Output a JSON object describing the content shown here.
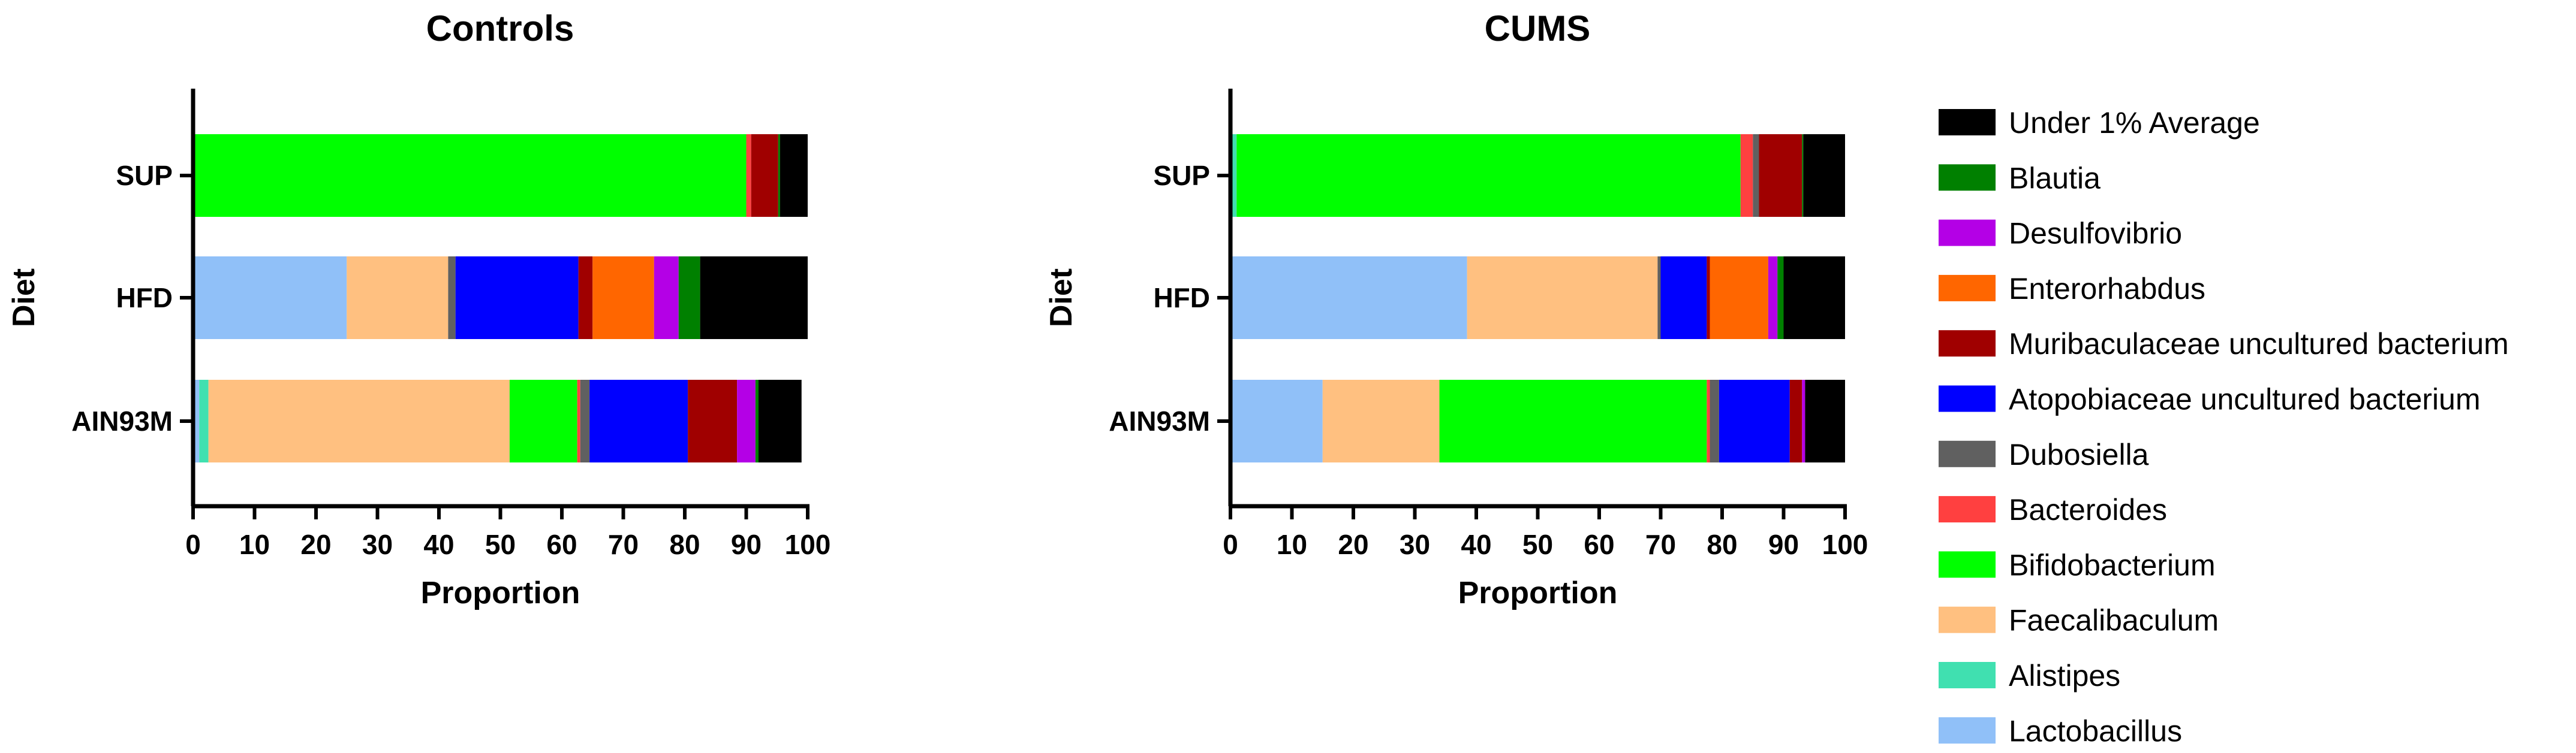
{
  "chart_data": [
    {
      "type": "bar",
      "orientation": "horizontal",
      "stacked": true,
      "title": "Controls",
      "xlabel": "Proportion",
      "ylabel": "Diet",
      "xlim": [
        0,
        100
      ],
      "x_ticks": [
        "0",
        "10",
        "20",
        "30",
        "40",
        "50",
        "60",
        "70",
        "80",
        "90",
        "100"
      ],
      "categories": [
        "SUP",
        "HFD",
        "AIN93M"
      ],
      "series": [
        {
          "name": "Lactobacillus",
          "values": [
            0,
            25,
            1
          ]
        },
        {
          "name": "Alistipes",
          "values": [
            0,
            0,
            1.5
          ]
        },
        {
          "name": "Faecalibaculum",
          "values": [
            0,
            16.5,
            49
          ]
        },
        {
          "name": "Bifidobacterium",
          "values": [
            90,
            0,
            11
          ]
        },
        {
          "name": "Bacteroides",
          "values": [
            0.8,
            0,
            0.5
          ]
        },
        {
          "name": "Dubosiella",
          "values": [
            0,
            1.2,
            1.5
          ]
        },
        {
          "name": "Atopobiaceae uncultured bacterium",
          "values": [
            0,
            20,
            16
          ]
        },
        {
          "name": "Muribaculaceae uncultured bacterium",
          "values": [
            4.4,
            2.3,
            8
          ]
        },
        {
          "name": "Enterorhabdus",
          "values": [
            0,
            10,
            0
          ]
        },
        {
          "name": "Desulfovibrio",
          "values": [
            0,
            4,
            3
          ]
        },
        {
          "name": "Blautia",
          "values": [
            0.3,
            3.5,
            0.5
          ]
        },
        {
          "name": "Under 1% Average",
          "values": [
            4.5,
            17.5,
            7
          ]
        }
      ]
    },
    {
      "type": "bar",
      "orientation": "horizontal",
      "stacked": true,
      "title": "CUMS",
      "xlabel": "Proportion",
      "ylabel": "Diet",
      "xlim": [
        0,
        100
      ],
      "x_ticks": [
        "0",
        "10",
        "20",
        "30",
        "40",
        "50",
        "60",
        "70",
        "80",
        "90",
        "100"
      ],
      "categories": [
        "SUP",
        "HFD",
        "AIN93M"
      ],
      "series": [
        {
          "name": "Lactobacillus",
          "values": [
            0,
            38.5,
            15
          ]
        },
        {
          "name": "Alistipes",
          "values": [
            1,
            0,
            0
          ]
        },
        {
          "name": "Faecalibaculum",
          "values": [
            0,
            31,
            19
          ]
        },
        {
          "name": "Bifidobacterium",
          "values": [
            82,
            0,
            43.5
          ]
        },
        {
          "name": "Bacteroides",
          "values": [
            2,
            0,
            0.5
          ]
        },
        {
          "name": "Dubosiella",
          "values": [
            1,
            0.5,
            1.5
          ]
        },
        {
          "name": "Atopobiaceae uncultured bacterium",
          "values": [
            0,
            7.5,
            11.5
          ]
        },
        {
          "name": "Muribaculaceae uncultured bacterium",
          "values": [
            7,
            0.5,
            2
          ]
        },
        {
          "name": "Enterorhabdus",
          "values": [
            0,
            9.5,
            0
          ]
        },
        {
          "name": "Desulfovibrio",
          "values": [
            0,
            1.5,
            0.5
          ]
        },
        {
          "name": "Blautia",
          "values": [
            0.2,
            1,
            0
          ]
        },
        {
          "name": "Under 1% Average",
          "values": [
            6.8,
            10,
            6.5
          ]
        }
      ]
    }
  ],
  "legend": {
    "placement": "right",
    "items": [
      {
        "label": "Under 1% Average",
        "color": "#000000"
      },
      {
        "label": "Blautia",
        "color": "#008000"
      },
      {
        "label": "Desulfovibrio",
        "color": "#B400E6"
      },
      {
        "label": "Enterorhabdus",
        "color": "#FF6600"
      },
      {
        "label": "Muribaculaceae uncultured bacterium",
        "color": "#A00000"
      },
      {
        "label": "Atopobiaceae uncultured bacterium",
        "color": "#0000FF"
      },
      {
        "label": "Dubosiella",
        "color": "#606060"
      },
      {
        "label": "Bacteroides",
        "color": "#FF4040"
      },
      {
        "label": "Bifidobacterium",
        "color": "#00FF00"
      },
      {
        "label": "Faecalibaculum",
        "color": "#FFC080"
      },
      {
        "label": "Alistipes",
        "color": "#40E0B0"
      },
      {
        "label": "Lactobacillus",
        "color": "#90C0F8"
      }
    ]
  }
}
